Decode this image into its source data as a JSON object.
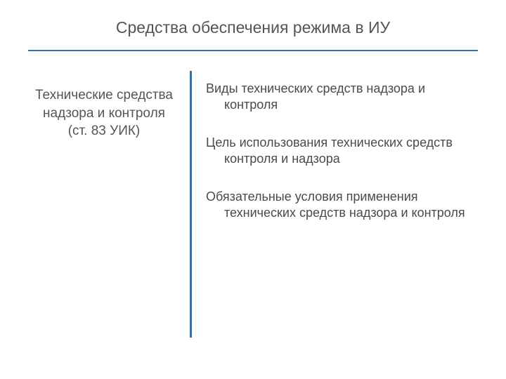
{
  "slide": {
    "title": "Средства обеспечения режима в ИУ",
    "title_color": "#555555",
    "title_fontsize": 23,
    "divider_color": "#3a6ea5",
    "background_color": "#ffffff",
    "left": {
      "heading_line1": "Технические средства надзора и контроля",
      "heading_line2": "(ст. 83 УИК)",
      "heading_fontsize": 19,
      "heading_color": "#555555"
    },
    "right": {
      "items": [
        "Виды технических средств надзора и контроля",
        "Цель использования технических средств контроля и надзора",
        "Обязательные условия применения технических средств надзора и контроля"
      ],
      "item_fontsize": 18,
      "item_color": "#4a4a4a"
    }
  }
}
